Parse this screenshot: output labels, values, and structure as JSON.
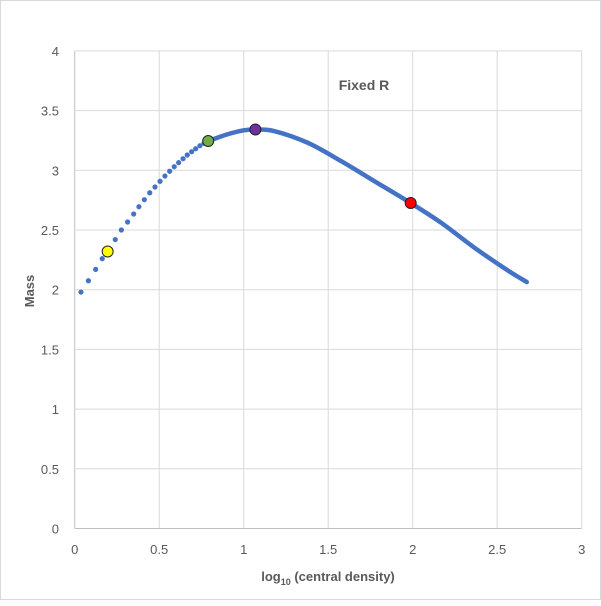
{
  "chart_data": {
    "type": "scatter",
    "title": "Fixed R",
    "xlabel_main": "log",
    "xlabel_sub": "10",
    "xlabel_rest": " (central density)",
    "ylabel": "Mass",
    "xlim": [
      0,
      3
    ],
    "ylim": [
      0,
      4
    ],
    "xticks": [
      0,
      0.5,
      1,
      1.5,
      2,
      2.5,
      3
    ],
    "yticks": [
      0,
      0.5,
      1,
      1.5,
      2,
      2.5,
      3,
      3.5,
      4
    ],
    "grid": true,
    "series_color": "#4472C4",
    "dotted_series": {
      "x": [
        0.037,
        0.081,
        0.124,
        0.163,
        0.195,
        0.24,
        0.276,
        0.313,
        0.349,
        0.38,
        0.412,
        0.444,
        0.475,
        0.505,
        0.534,
        0.562,
        0.589,
        0.615,
        0.641,
        0.666,
        0.692,
        0.716,
        0.741,
        0.765
      ],
      "y": [
        1.98,
        2.075,
        2.17,
        2.26,
        2.32,
        2.42,
        2.5,
        2.567,
        2.634,
        2.695,
        2.754,
        2.812,
        2.86,
        2.908,
        2.952,
        2.992,
        3.03,
        3.064,
        3.097,
        3.128,
        3.156,
        3.181,
        3.206,
        3.226
      ]
    },
    "line_series": {
      "x": [
        0.79,
        0.9,
        1.0,
        1.07,
        1.18,
        1.378,
        1.575,
        1.772,
        1.988,
        2.168,
        2.365,
        2.562,
        2.675
      ],
      "y": [
        3.245,
        3.3,
        3.335,
        3.342,
        3.329,
        3.231,
        3.078,
        2.91,
        2.726,
        2.561,
        2.352,
        2.162,
        2.064
      ]
    },
    "highlight_points": [
      {
        "x": 0.195,
        "y": 2.32,
        "color": "#FFFF00"
      },
      {
        "x": 0.79,
        "y": 3.245,
        "color": "#70AD47"
      },
      {
        "x": 1.069,
        "y": 3.342,
        "color": "#7030A0"
      },
      {
        "x": 1.988,
        "y": 2.726,
        "color": "#FF0000"
      }
    ]
  }
}
